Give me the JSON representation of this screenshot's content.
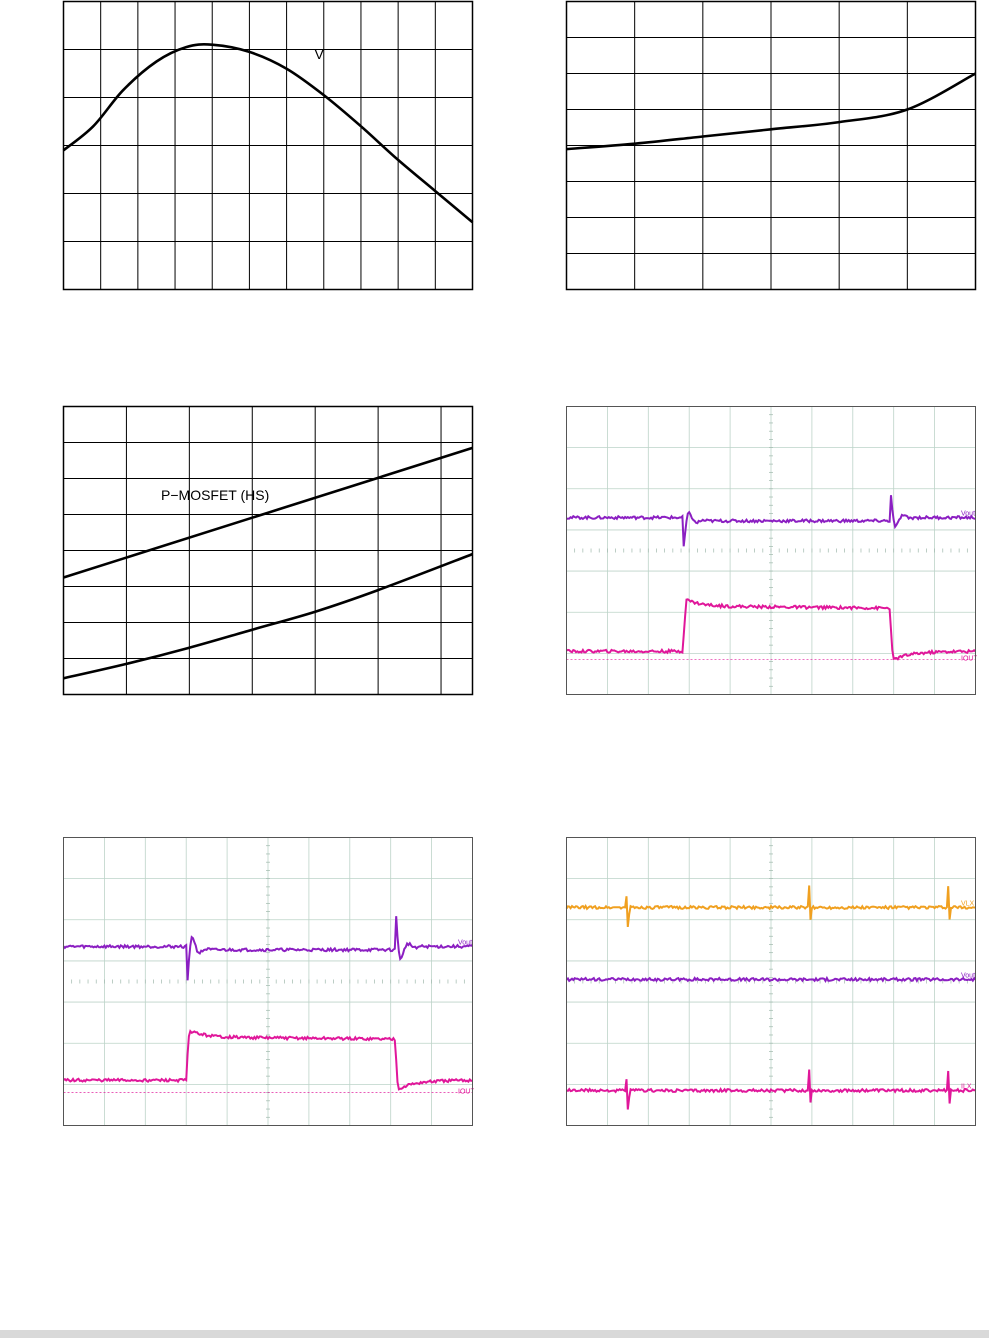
{
  "chart_data": [
    {
      "type": "line",
      "grid": true,
      "labels": [
        {
          "text": "V",
          "at": [
            6.75,
            4.8
          ]
        }
      ],
      "xlim": [
        0,
        11
      ],
      "ylim": [
        0,
        6
      ],
      "series": [
        {
          "values": [
            [
              0,
              2.9
            ],
            [
              0.8,
              3.4
            ],
            [
              1.6,
              4.15
            ],
            [
              2.5,
              4.75
            ],
            [
              3.3,
              5.05
            ],
            [
              4,
              5.1
            ],
            [
              5,
              4.95
            ],
            [
              6,
              4.6
            ],
            [
              7,
              4.05
            ],
            [
              8,
              3.4
            ],
            [
              9,
              2.7
            ],
            [
              10,
              2.05
            ],
            [
              11,
              1.4
            ]
          ]
        }
      ]
    },
    {
      "type": "line",
      "grid": true,
      "labels": [],
      "xlim": [
        0,
        6
      ],
      "ylim": [
        0,
        8
      ],
      "series": [
        {
          "values": [
            [
              0,
              3.9
            ],
            [
              1,
              4.05
            ],
            [
              2,
              4.25
            ],
            [
              3,
              4.45
            ],
            [
              4,
              4.65
            ],
            [
              5,
              5.0
            ],
            [
              6,
              6.0
            ]
          ]
        }
      ]
    },
    {
      "type": "line",
      "grid": true,
      "labels": [
        {
          "text": "P−MOSFET (HS)",
          "at": [
            1.55,
            5.4
          ]
        }
      ],
      "xlim": [
        0,
        6.5
      ],
      "ylim": [
        0,
        8
      ],
      "series": [
        {
          "name": "P−MOSFET (HS)",
          "values": [
            [
              0,
              3.25
            ],
            [
              6.5,
              6.85
            ]
          ]
        },
        {
          "values": [
            [
              0,
              0.45
            ],
            [
              1,
              0.85
            ],
            [
              2,
              1.3
            ],
            [
              3,
              1.8
            ],
            [
              4,
              2.3
            ],
            [
              5,
              2.9
            ],
            [
              6.5,
              3.9
            ]
          ]
        }
      ]
    },
    {
      "type": "scope",
      "grid": true,
      "labels": [
        {
          "text": "Vout",
          "at": "right"
        },
        {
          "text": "IOUT",
          "at": "right"
        }
      ],
      "xlim": [
        0,
        10
      ],
      "ylim": [
        0,
        7
      ],
      "channels": [
        {
          "color": "#8b1fc2",
          "baseline": 4.3,
          "step_up": 2.85,
          "step_down": 7.9,
          "overshoot": -0.75,
          "undershoot": 0.85
        },
        {
          "color": "#e0179a",
          "baseline": 1.05,
          "high": 2.15,
          "step_up": 2.85,
          "step_down": 7.9,
          "ref": 0.85
        }
      ]
    },
    {
      "type": "scope",
      "grid": true,
      "labels": [
        {
          "text": "Vout",
          "at": "right"
        },
        {
          "text": "IOUT",
          "at": "right"
        }
      ],
      "xlim": [
        0,
        10
      ],
      "ylim": [
        0,
        7
      ],
      "channels": [
        {
          "color": "#8b1fc2",
          "baseline": 4.35,
          "step_up": 3.0,
          "step_down": 8.1,
          "overshoot": -1.2,
          "undershoot": 1.15
        },
        {
          "color": "#e0179a",
          "baseline": 1.1,
          "high": 2.15,
          "step_up": 3.0,
          "step_down": 8.1,
          "ref": 0.8
        }
      ]
    },
    {
      "type": "scope",
      "grid": true,
      "labels": [
        {
          "text": "VLX",
          "at": "right"
        },
        {
          "text": "Vout",
          "at": "right"
        },
        {
          "text": "ILX",
          "at": "right"
        }
      ],
      "xlim": [
        0,
        10
      ],
      "ylim": [
        0,
        7
      ],
      "channels": [
        {
          "color": "#f0a020",
          "baseline": 5.3,
          "spikes": [
            1.5,
            5.95,
            9.35
          ]
        },
        {
          "color": "#8b1fc2",
          "baseline": 3.55
        },
        {
          "color": "#e0179a",
          "baseline": 0.85,
          "spikes": [
            1.5,
            5.95,
            9.35
          ]
        }
      ]
    }
  ]
}
